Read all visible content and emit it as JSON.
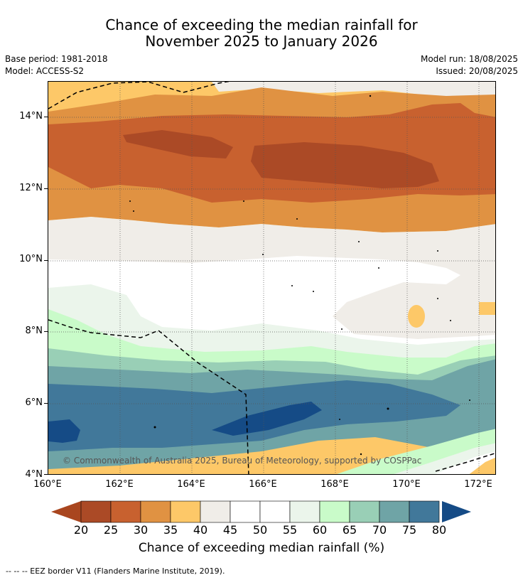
{
  "title": {
    "line1": "Chance of exceeding the median rainfall for",
    "line2": "November 2025 to January 2026"
  },
  "meta": {
    "base_period": "Base period: 1981-2018",
    "model": "Model: ACCESS-S2",
    "model_run": "Model run: 18/08/2025",
    "issued": "Issued: 20/08/2025"
  },
  "map": {
    "y_ticks": [
      "14°N",
      "12°N",
      "10°N",
      "8°N",
      "6°N",
      "4°N"
    ],
    "x_ticks": [
      "160°E",
      "162°E",
      "164°E",
      "166°E",
      "168°E",
      "170°E",
      "172°E"
    ],
    "copyright": "© Commonwealth of Australia 2025, Bureau of Meteorology, supported by COSPPac"
  },
  "colorbar": {
    "labels": [
      "20",
      "25",
      "30",
      "35",
      "40",
      "45",
      "50",
      "55",
      "60",
      "65",
      "70",
      "75",
      "80"
    ],
    "colors": [
      "#ab4a26",
      "#c8612f",
      "#e09242",
      "#fdc868",
      "#f0ede8",
      "#ffffff",
      "#ffffff",
      "#ebf5eb",
      "#c9fbc9",
      "#99cfb6",
      "#6fa4a6",
      "#41789a"
    ],
    "low_color": "#a9461f",
    "high_color": "#154b86",
    "title": "Chance of exceeding median rainfall (%)"
  },
  "footer": "--  --  -- EEZ border V11 (Flanders Marine Institute, 2019)."
}
